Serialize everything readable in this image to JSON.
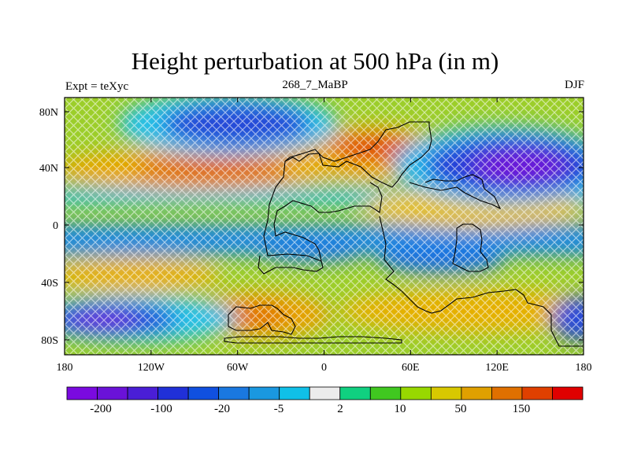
{
  "title": "Height perturbation at 500 hPa (in m)",
  "left_label": "Expt = teXyc",
  "center_label": "268_7_MaBP",
  "right_label": "DJF",
  "lat_ticks": [
    "80N",
    "40N",
    "0",
    "40S",
    "80S"
  ],
  "lon_ticks": [
    "180",
    "120W",
    "60W",
    "0",
    "60E",
    "120E",
    "180"
  ],
  "colorbar": {
    "colors": [
      "#7a0ae0",
      "#6a12d8",
      "#4a1ed6",
      "#2030d8",
      "#1050e0",
      "#1a78e0",
      "#1a98e0",
      "#10c0e8",
      "#ececec",
      "#10d080",
      "#40c820",
      "#98d800",
      "#d8c800",
      "#e0a000",
      "#e07000",
      "#e04000",
      "#e00000"
    ],
    "labels": [
      "-200",
      "-100",
      "-20",
      "-5",
      "2",
      "10",
      "50",
      "150"
    ]
  }
}
